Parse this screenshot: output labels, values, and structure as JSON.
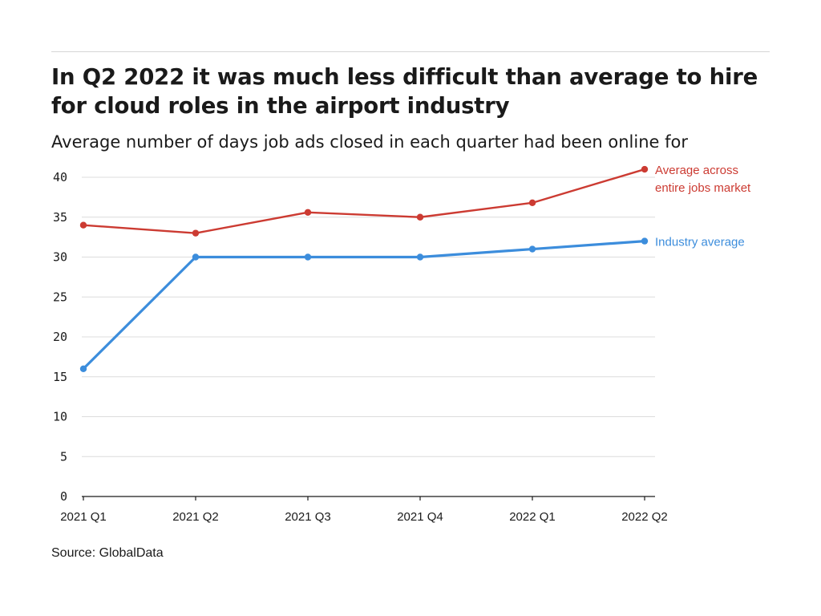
{
  "header": {
    "title": "In Q2 2022 it was much less difficult than average to hire for cloud roles in the airport industry",
    "subtitle": "Average number of days job ads closed in each quarter had been online for"
  },
  "footer": {
    "source": "Source: GlobalData"
  },
  "colors": {
    "market": "#cc3b32",
    "industry": "#3c8ddc",
    "grid": "#dcdcdc",
    "axis": "#1a1a1a"
  },
  "chart_data": {
    "type": "line",
    "title": "In Q2 2022 it was much less difficult than average to hire for cloud roles in the airport industry",
    "subtitle": "Average number of days job ads closed in each quarter had been online for",
    "xlabel": "",
    "ylabel": "",
    "categories": [
      "2021 Q1",
      "2021 Q2",
      "2021 Q3",
      "2021 Q4",
      "2022 Q1",
      "2022 Q2"
    ],
    "ylim": [
      0,
      40
    ],
    "yticks": [
      0,
      5,
      10,
      15,
      20,
      25,
      30,
      35,
      40
    ],
    "grid": true,
    "series": [
      {
        "name": "Average across entire jobs market",
        "label_lines": [
          "Average across",
          "entire jobs market"
        ],
        "color": "#cc3b32",
        "values": [
          34,
          33,
          35.6,
          35,
          36.8,
          41
        ]
      },
      {
        "name": "Industry average",
        "label_lines": [
          "Industry average"
        ],
        "color": "#3c8ddc",
        "values": [
          16,
          30,
          30,
          30,
          31,
          32
        ]
      }
    ]
  }
}
